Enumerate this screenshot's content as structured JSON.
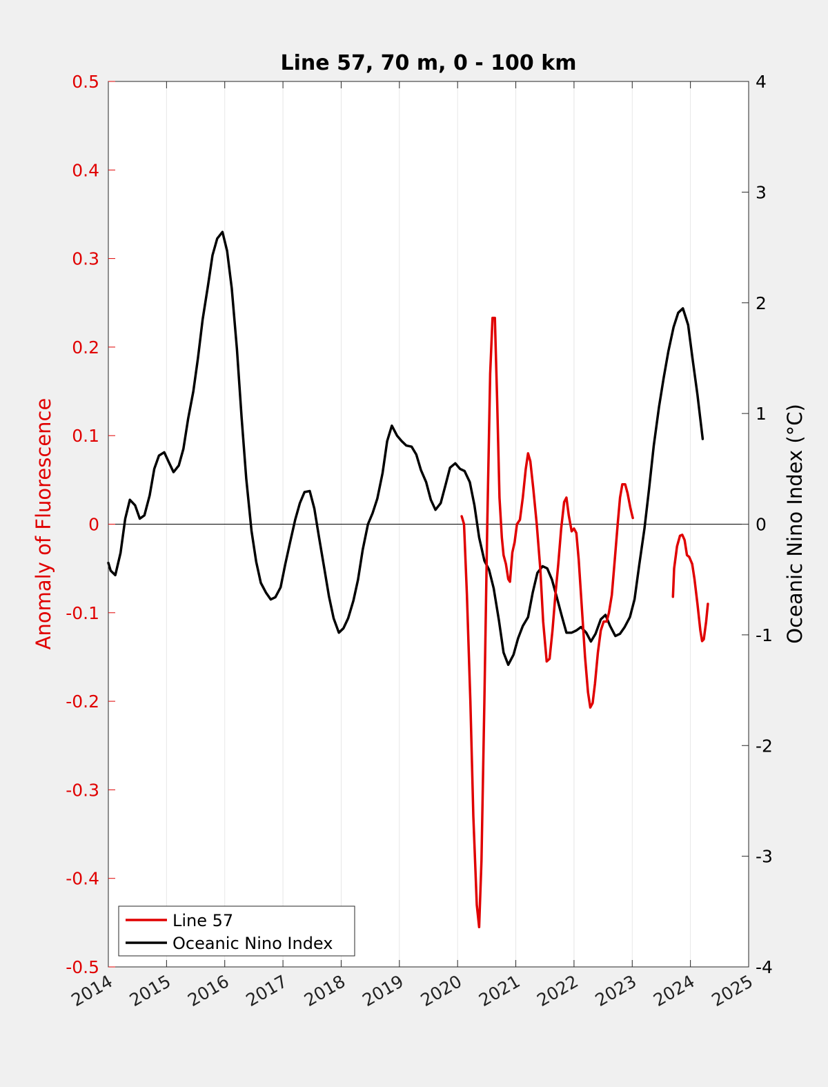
{
  "chart_data": {
    "type": "line",
    "title": "Line 57, 70 m, 0 - 100 km",
    "xlabel": "",
    "ylabel_left": "Anomaly of Fluorescence",
    "ylabel_right": "Oceanic Nino Index (°C)",
    "xlim": [
      2014,
      2025
    ],
    "ylim_left": [
      -0.5,
      0.5
    ],
    "ylim_right": [
      -4,
      4
    ],
    "x_ticks": [
      "2014",
      "2015",
      "2016",
      "2017",
      "2018",
      "2019",
      "2020",
      "2021",
      "2022",
      "2023",
      "2024",
      "2025"
    ],
    "y_ticks_left": [
      "0.5",
      "0.4",
      "0.3",
      "0.2",
      "0.1",
      "0",
      "-0.1",
      "-0.2",
      "-0.3",
      "-0.4",
      "-0.5"
    ],
    "y_ticks_right": [
      "4",
      "3",
      "2",
      "1",
      "0",
      "-1",
      "-2",
      "-3",
      "-4"
    ],
    "grid": "vertical",
    "zero_line": true,
    "legend_position": "bottom-left",
    "series": [
      {
        "name": "Line 57",
        "axis": "left",
        "color": "#e00000",
        "segments": [
          [
            [
              2020.07,
              0.009
            ],
            [
              2020.11,
              0.0
            ],
            [
              2020.16,
              -0.08
            ],
            [
              2020.22,
              -0.2
            ],
            [
              2020.27,
              -0.33
            ],
            [
              2020.33,
              -0.43
            ],
            [
              2020.37,
              -0.455
            ],
            [
              2020.41,
              -0.38
            ],
            [
              2020.46,
              -0.2
            ],
            [
              2020.51,
              0.0
            ],
            [
              2020.56,
              0.17
            ],
            [
              2020.6,
              0.233
            ],
            [
              2020.64,
              0.233
            ],
            [
              2020.68,
              0.14
            ],
            [
              2020.72,
              0.03
            ],
            [
              2020.76,
              -0.015
            ],
            [
              2020.79,
              -0.035
            ],
            [
              2020.83,
              -0.045
            ],
            [
              2020.87,
              -0.062
            ],
            [
              2020.9,
              -0.065
            ],
            [
              2020.94,
              -0.032
            ],
            [
              2020.98,
              -0.02
            ],
            [
              2021.02,
              0.0
            ],
            [
              2021.07,
              0.005
            ],
            [
              2021.12,
              0.03
            ],
            [
              2021.17,
              0.062
            ],
            [
              2021.21,
              0.08
            ],
            [
              2021.25,
              0.071
            ],
            [
              2021.3,
              0.04
            ],
            [
              2021.36,
              0.0
            ],
            [
              2021.42,
              -0.05
            ],
            [
              2021.47,
              -0.11
            ],
            [
              2021.53,
              -0.155
            ],
            [
              2021.58,
              -0.152
            ],
            [
              2021.63,
              -0.12
            ],
            [
              2021.68,
              -0.08
            ],
            [
              2021.73,
              -0.045
            ],
            [
              2021.78,
              -0.005
            ],
            [
              2021.83,
              0.025
            ],
            [
              2021.87,
              0.03
            ],
            [
              2021.91,
              0.01
            ],
            [
              2021.96,
              -0.008
            ],
            [
              2022.0,
              -0.005
            ],
            [
              2022.04,
              -0.01
            ],
            [
              2022.08,
              -0.04
            ],
            [
              2022.13,
              -0.09
            ],
            [
              2022.19,
              -0.15
            ],
            [
              2022.24,
              -0.19
            ],
            [
              2022.28,
              -0.207
            ],
            [
              2022.32,
              -0.202
            ],
            [
              2022.36,
              -0.18
            ],
            [
              2022.41,
              -0.145
            ],
            [
              2022.46,
              -0.12
            ],
            [
              2022.51,
              -0.11
            ],
            [
              2022.56,
              -0.11
            ],
            [
              2022.6,
              -0.1
            ],
            [
              2022.65,
              -0.08
            ],
            [
              2022.7,
              -0.04
            ],
            [
              2022.75,
              0.0
            ],
            [
              2022.79,
              0.03
            ],
            [
              2022.83,
              0.045
            ],
            [
              2022.88,
              0.045
            ],
            [
              2022.92,
              0.035
            ],
            [
              2022.97,
              0.018
            ],
            [
              2023.01,
              0.007
            ]
          ],
          [
            [
              2023.7,
              -0.082
            ],
            [
              2023.72,
              -0.05
            ],
            [
              2023.77,
              -0.025
            ],
            [
              2023.82,
              -0.013
            ],
            [
              2023.86,
              -0.012
            ],
            [
              2023.9,
              -0.018
            ],
            [
              2023.94,
              -0.035
            ],
            [
              2023.98,
              -0.037
            ],
            [
              2024.03,
              -0.045
            ],
            [
              2024.07,
              -0.062
            ],
            [
              2024.12,
              -0.09
            ],
            [
              2024.17,
              -0.12
            ],
            [
              2024.2,
              -0.132
            ],
            [
              2024.23,
              -0.13
            ],
            [
              2024.27,
              -0.11
            ],
            [
              2024.3,
              -0.09
            ]
          ]
        ]
      },
      {
        "name": "Oceanic Nino Index",
        "axis": "right",
        "color": "#000000",
        "segments": [
          [
            [
              2014.0,
              -0.35
            ],
            [
              2014.04,
              -0.42
            ],
            [
              2014.12,
              -0.46
            ],
            [
              2014.21,
              -0.26
            ],
            [
              2014.29,
              0.05
            ],
            [
              2014.37,
              0.22
            ],
            [
              2014.46,
              0.17
            ],
            [
              2014.54,
              0.05
            ],
            [
              2014.62,
              0.08
            ],
            [
              2014.71,
              0.26
            ],
            [
              2014.79,
              0.5
            ],
            [
              2014.87,
              0.62
            ],
            [
              2014.96,
              0.65
            ],
            [
              2015.04,
              0.56
            ],
            [
              2015.12,
              0.47
            ],
            [
              2015.21,
              0.53
            ],
            [
              2015.29,
              0.68
            ],
            [
              2015.37,
              0.95
            ],
            [
              2015.46,
              1.2
            ],
            [
              2015.54,
              1.5
            ],
            [
              2015.62,
              1.85
            ],
            [
              2015.71,
              2.15
            ],
            [
              2015.79,
              2.43
            ],
            [
              2015.87,
              2.58
            ],
            [
              2015.96,
              2.64
            ],
            [
              2016.04,
              2.47
            ],
            [
              2016.12,
              2.13
            ],
            [
              2016.21,
              1.58
            ],
            [
              2016.29,
              0.96
            ],
            [
              2016.37,
              0.41
            ],
            [
              2016.46,
              -0.06
            ],
            [
              2016.54,
              -0.34
            ],
            [
              2016.62,
              -0.53
            ],
            [
              2016.71,
              -0.62
            ],
            [
              2016.79,
              -0.68
            ],
            [
              2016.87,
              -0.66
            ],
            [
              2016.96,
              -0.57
            ],
            [
              2017.04,
              -0.36
            ],
            [
              2017.12,
              -0.17
            ],
            [
              2017.21,
              0.04
            ],
            [
              2017.29,
              0.19
            ],
            [
              2017.37,
              0.29
            ],
            [
              2017.46,
              0.3
            ],
            [
              2017.54,
              0.14
            ],
            [
              2017.62,
              -0.12
            ],
            [
              2017.71,
              -0.4
            ],
            [
              2017.79,
              -0.65
            ],
            [
              2017.87,
              -0.85
            ],
            [
              2017.96,
              -0.98
            ],
            [
              2018.04,
              -0.94
            ],
            [
              2018.12,
              -0.85
            ],
            [
              2018.21,
              -0.69
            ],
            [
              2018.29,
              -0.5
            ],
            [
              2018.37,
              -0.23
            ],
            [
              2018.46,
              0.0
            ],
            [
              2018.54,
              0.1
            ],
            [
              2018.62,
              0.23
            ],
            [
              2018.71,
              0.46
            ],
            [
              2018.79,
              0.75
            ],
            [
              2018.87,
              0.89
            ],
            [
              2018.96,
              0.8
            ],
            [
              2019.04,
              0.75
            ],
            [
              2019.12,
              0.71
            ],
            [
              2019.21,
              0.7
            ],
            [
              2019.29,
              0.63
            ],
            [
              2019.37,
              0.49
            ],
            [
              2019.46,
              0.38
            ],
            [
              2019.54,
              0.22
            ],
            [
              2019.62,
              0.13
            ],
            [
              2019.71,
              0.19
            ],
            [
              2019.79,
              0.35
            ],
            [
              2019.87,
              0.51
            ],
            [
              2019.96,
              0.55
            ],
            [
              2020.04,
              0.5
            ],
            [
              2020.12,
              0.48
            ],
            [
              2020.21,
              0.38
            ],
            [
              2020.29,
              0.17
            ],
            [
              2020.37,
              -0.12
            ],
            [
              2020.46,
              -0.33
            ],
            [
              2020.54,
              -0.41
            ],
            [
              2020.62,
              -0.58
            ],
            [
              2020.71,
              -0.87
            ],
            [
              2020.79,
              -1.16
            ],
            [
              2020.87,
              -1.27
            ],
            [
              2020.96,
              -1.18
            ],
            [
              2021.04,
              -1.03
            ],
            [
              2021.12,
              -0.92
            ],
            [
              2021.21,
              -0.84
            ],
            [
              2021.29,
              -0.62
            ],
            [
              2021.37,
              -0.44
            ],
            [
              2021.46,
              -0.38
            ],
            [
              2021.54,
              -0.4
            ],
            [
              2021.62,
              -0.5
            ],
            [
              2021.71,
              -0.67
            ],
            [
              2021.79,
              -0.83
            ],
            [
              2021.87,
              -0.98
            ],
            [
              2021.96,
              -0.98
            ],
            [
              2022.04,
              -0.96
            ],
            [
              2022.12,
              -0.93
            ],
            [
              2022.21,
              -0.98
            ],
            [
              2022.29,
              -1.06
            ],
            [
              2022.37,
              -0.99
            ],
            [
              2022.46,
              -0.86
            ],
            [
              2022.54,
              -0.82
            ],
            [
              2022.62,
              -0.92
            ],
            [
              2022.71,
              -1.01
            ],
            [
              2022.79,
              -0.99
            ],
            [
              2022.87,
              -0.93
            ],
            [
              2022.96,
              -0.84
            ],
            [
              2023.04,
              -0.68
            ],
            [
              2023.12,
              -0.37
            ],
            [
              2023.21,
              -0.04
            ],
            [
              2023.29,
              0.32
            ],
            [
              2023.37,
              0.71
            ],
            [
              2023.46,
              1.06
            ],
            [
              2023.54,
              1.32
            ],
            [
              2023.62,
              1.56
            ],
            [
              2023.71,
              1.78
            ],
            [
              2023.79,
              1.91
            ],
            [
              2023.87,
              1.95
            ],
            [
              2023.96,
              1.8
            ],
            [
              2024.04,
              1.48
            ],
            [
              2024.12,
              1.17
            ],
            [
              2024.21,
              0.77
            ]
          ]
        ]
      }
    ]
  }
}
